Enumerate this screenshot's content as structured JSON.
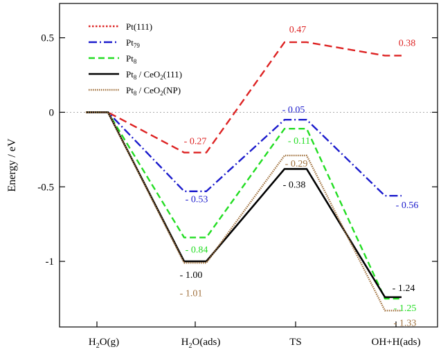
{
  "chart_data": {
    "type": "line",
    "title": "",
    "xlabel": "",
    "ylabel": "Energy / eV",
    "ylim": [
      -1.44,
      0.73
    ],
    "categories": [
      "H2O(g)",
      "H2O(ads)",
      "TS",
      "OH+H(ads)"
    ],
    "yticks": [
      0.5,
      0,
      -0.5,
      -1
    ],
    "ytick_labels": [
      "0.5",
      "0",
      "-0.5",
      "-1"
    ],
    "zero_reference_line": true,
    "legend_position": "top-left",
    "series": [
      {
        "name": "Pt(111)",
        "color": "#dd2222",
        "style": "dashed",
        "values": [
          0,
          -0.27,
          0.47,
          0.38
        ],
        "labels": [
          "",
          "- 0.27",
          "0.47",
          "0.38"
        ]
      },
      {
        "name": "Pt79",
        "color": "#1a1acc",
        "style": "dashdot",
        "values": [
          0,
          -0.53,
          -0.05,
          -0.56
        ],
        "labels": [
          "",
          "- 0.53",
          "- 0.05",
          "- 0.56"
        ]
      },
      {
        "name": "Pt8",
        "color": "#22dd22",
        "style": "dashdot",
        "values": [
          0,
          -0.84,
          -0.11,
          -1.25
        ],
        "labels": [
          "",
          "- 0.84",
          "- 0.11",
          "- 1.25"
        ]
      },
      {
        "name": "Pt8 / CeO2(111)",
        "color": "#000000",
        "style": "solid",
        "values": [
          0,
          -1.0,
          -0.38,
          -1.24
        ],
        "labels": [
          "",
          "- 1.00",
          "- 0.38",
          "- 1.24"
        ]
      },
      {
        "name": "Pt8 / CeO2(NP)",
        "color": "#a0703c",
        "style": "dotted",
        "values": [
          0,
          -1.01,
          -0.29,
          -1.33
        ],
        "labels": [
          "",
          "- 1.01",
          "- 0.29",
          "- 1.33"
        ]
      }
    ]
  }
}
